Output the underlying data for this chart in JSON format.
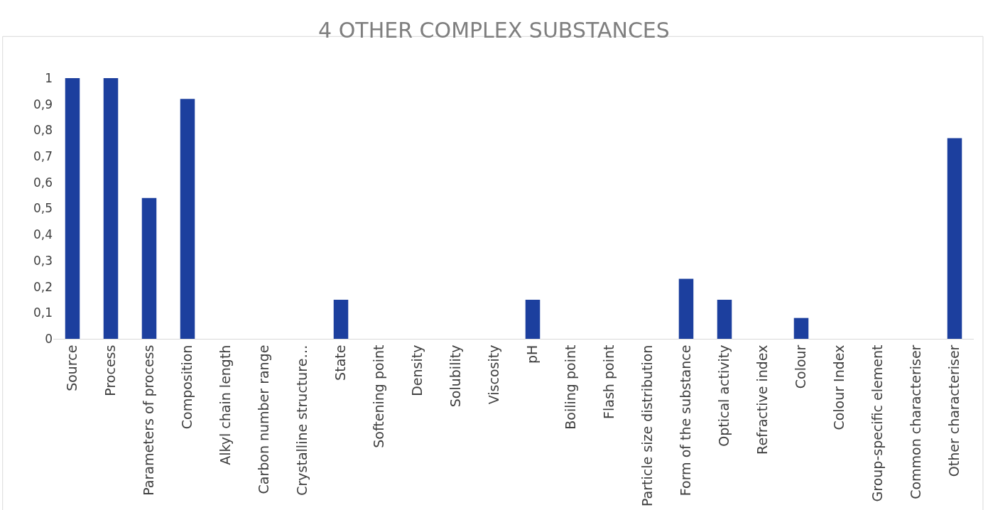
{
  "chart_data": {
    "type": "bar",
    "title": "4 OTHER COMPLEX SUBSTANCES",
    "categories": [
      "Source",
      "Process",
      "Parameters of process",
      "Composition",
      "Alkyl chain length",
      "Carbon number range",
      "Crystalline structure…",
      "State",
      "Softening point",
      "Density",
      "Solubility",
      "Viscosity",
      "pH",
      "Boiling point",
      "Flash point",
      "Particle size distribution",
      "Form of the substance",
      "Optical activity",
      "Refractive index",
      "Colour",
      "Colour Index",
      "Group-specific element",
      "Common characteriser",
      "Other characteriser"
    ],
    "values": [
      1,
      1,
      0.54,
      0.92,
      0,
      0,
      0,
      0.15,
      0,
      0,
      0,
      0,
      0.15,
      0,
      0,
      0,
      0.23,
      0.15,
      0,
      0.08,
      0,
      0,
      0,
      0.77
    ],
    "color": "#1c3f9e",
    "ylim": [
      0,
      1
    ],
    "yticks": [
      0,
      {
        "value": 0.1,
        "label": "0,1"
      },
      {
        "value": 0.2,
        "label": "0,2"
      },
      {
        "value": 0.3,
        "label": "0,3"
      },
      {
        "value": 0.4,
        "label": "0,4"
      },
      {
        "value": 0.5,
        "label": "0,5"
      },
      {
        "value": 0.6,
        "label": "0,6"
      },
      {
        "value": 0.7,
        "label": "0,7"
      },
      {
        "value": 0.8,
        "label": "0,8"
      },
      {
        "value": 0.9,
        "label": "0,9"
      },
      1
    ],
    "grid": false
  }
}
